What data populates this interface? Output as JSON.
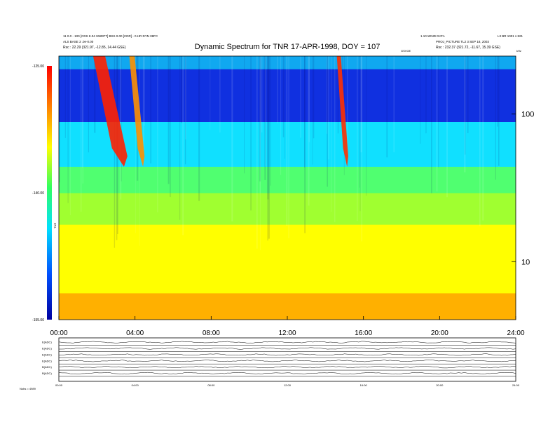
{
  "header": {
    "left_line1": "11 0.0 - 100 [CDS 8.04 SWEPT] BSS 0.00 [CDR] - 0.HR DYN 08FC",
    "left_line2": "ALS BASE 3 .0e-0.00",
    "left_line3": "Rsc : 22.29 (321.97, -12.85, 14.44 GSE)",
    "right_line1": "1.10 WIND DATA",
    "right_line2": "PROJ_PICTURE TL2 3 SEP 18, 2003",
    "right_line3": "Rsc : 232.37 (321.72, -11.67, 15.39 GSE)",
    "far_right_line1": "L3 BR 1001 s 821",
    "below_title_small": "GSVOE",
    "corner_tiny": "kHz"
  },
  "chart_data": {
    "type": "heatmap",
    "title": "Dynamic Spectrum for TNR 17-APR-1998, DOY = 107",
    "x_ticks": [
      "00:00",
      "04:00",
      "08:00",
      "12:00",
      "16:00",
      "20:00",
      "24:00"
    ],
    "xlim_hours": [
      0,
      24
    ],
    "y_label_right_ticks": [
      "100",
      "10"
    ],
    "colorbar": {
      "ticks": [
        "-125.00",
        "-140.00",
        "-155.00"
      ],
      "range": [
        -155,
        -125
      ],
      "label": "TNR",
      "colors": [
        "#0000a0",
        "#0050ff",
        "#00e0ff",
        "#30ff60",
        "#ffff00",
        "#ff8000",
        "#ff0000"
      ]
    },
    "bands": [
      {
        "y_frac_top": 0.0,
        "y_frac_bottom": 0.05,
        "color": "#10a8f0"
      },
      {
        "y_frac_top": 0.05,
        "y_frac_bottom": 0.25,
        "color": "#1030e0"
      },
      {
        "y_frac_top": 0.25,
        "y_frac_bottom": 0.42,
        "color": "#10e0ff"
      },
      {
        "y_frac_top": 0.42,
        "y_frac_bottom": 0.52,
        "color": "#50ff70"
      },
      {
        "y_frac_top": 0.52,
        "y_frac_bottom": 0.64,
        "color": "#a0ff30"
      },
      {
        "y_frac_top": 0.64,
        "y_frac_bottom": 0.9,
        "color": "#ffff00"
      },
      {
        "y_frac_top": 0.9,
        "y_frac_bottom": 1.0,
        "color": "#ffb000"
      }
    ],
    "bursts": [
      {
        "start_h": 1.8,
        "end_h": 3.6,
        "color": "#ff2000"
      },
      {
        "start_h": 3.7,
        "end_h": 4.5,
        "color": "#ff9000"
      },
      {
        "start_h": 14.6,
        "end_h": 15.2,
        "color": "#ff3000"
      }
    ]
  },
  "bottom_panel": {
    "rows": [
      "E(ADC)",
      "E(ADC)",
      "E(ADC)",
      "E(ADC)",
      "B(ADC)",
      "B(ADC)"
    ],
    "x_ticks": [
      "00:00",
      "04:00",
      "08:00",
      "12:00",
      "16:00",
      "20:00",
      "24:00"
    ],
    "foot_label": "Nobs = 4989"
  }
}
